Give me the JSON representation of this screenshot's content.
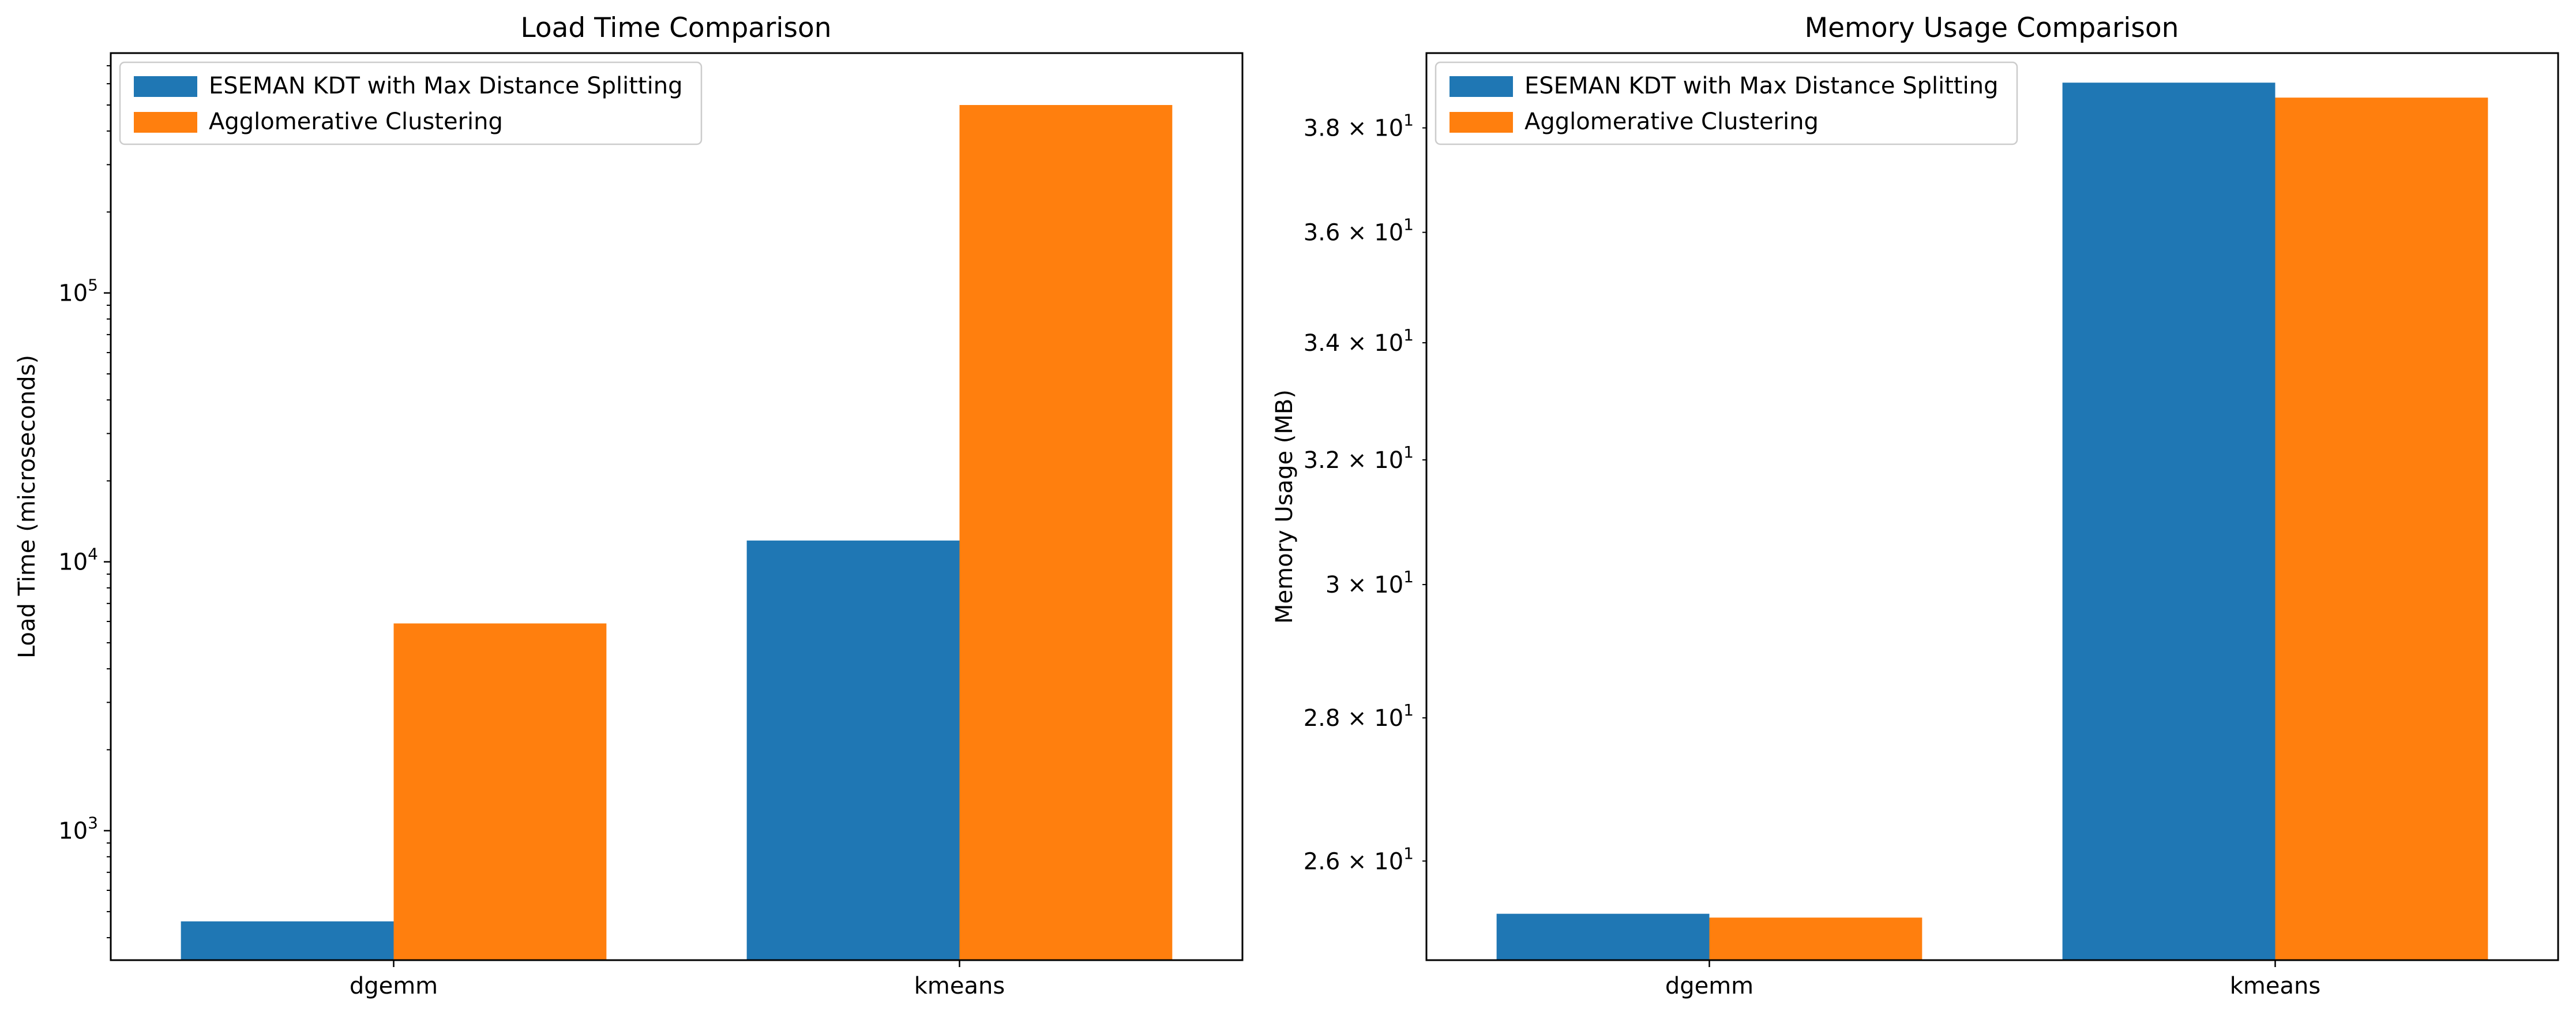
{
  "colors": {
    "series_1": "#1f77b4",
    "series_2": "#ff7f0e",
    "axis": "#000000",
    "legend_border": "#cccccc",
    "background": "#ffffff"
  },
  "chart_data": [
    {
      "type": "bar",
      "title": "Load Time Comparison",
      "xlabel": "",
      "ylabel": "Load Time (microseconds)",
      "yscale": "log",
      "ylim": [
        330,
        780000
      ],
      "categories": [
        "dgemm",
        "kmeans"
      ],
      "series": [
        {
          "name": "ESEMAN KDT with Max Distance Splitting",
          "color": "#1f77b4",
          "values": [
            460,
            12000
          ]
        },
        {
          "name": "Agglomerative Clustering",
          "color": "#ff7f0e",
          "values": [
            5900,
            500000
          ]
        }
      ],
      "yticks_major": [
        {
          "value": 1000,
          "base": "10",
          "exp": "3"
        },
        {
          "value": 10000,
          "base": "10",
          "exp": "4"
        },
        {
          "value": 100000,
          "base": "10",
          "exp": "5"
        }
      ],
      "yticks_minor": [
        400,
        500,
        600,
        700,
        800,
        900,
        2000,
        3000,
        4000,
        5000,
        6000,
        7000,
        8000,
        9000,
        20000,
        30000,
        40000,
        50000,
        60000,
        70000,
        80000,
        90000,
        200000,
        300000,
        400000,
        500000,
        600000,
        700000
      ],
      "legend": "top-left",
      "grid": false
    },
    {
      "type": "bar",
      "title": "Memory Usage Comparison",
      "xlabel": "",
      "ylabel": "Memory Usage (MB)",
      "yscale": "log",
      "ylim": [
        24.7,
        39.5
      ],
      "categories": [
        "dgemm",
        "kmeans"
      ],
      "series": [
        {
          "name": "ESEMAN KDT with Max Distance Splitting",
          "color": "#1f77b4",
          "values": [
            25.3,
            38.9
          ]
        },
        {
          "name": "Agglomerative Clustering",
          "color": "#ff7f0e",
          "values": [
            25.25,
            38.6
          ]
        }
      ],
      "yticks_minor": [
        {
          "value": 26,
          "mant": "2.6",
          "base": "10",
          "exp": "1"
        },
        {
          "value": 28,
          "mant": "2.8",
          "base": "10",
          "exp": "1"
        },
        {
          "value": 30,
          "mant": "3",
          "base": "10",
          "exp": "1"
        },
        {
          "value": 32,
          "mant": "3.2",
          "base": "10",
          "exp": "1"
        },
        {
          "value": 34,
          "mant": "3.4",
          "base": "10",
          "exp": "1"
        },
        {
          "value": 36,
          "mant": "3.6",
          "base": "10",
          "exp": "1"
        },
        {
          "value": 38,
          "mant": "3.8",
          "base": "10",
          "exp": "1"
        }
      ],
      "legend": "top-left",
      "grid": false
    }
  ]
}
